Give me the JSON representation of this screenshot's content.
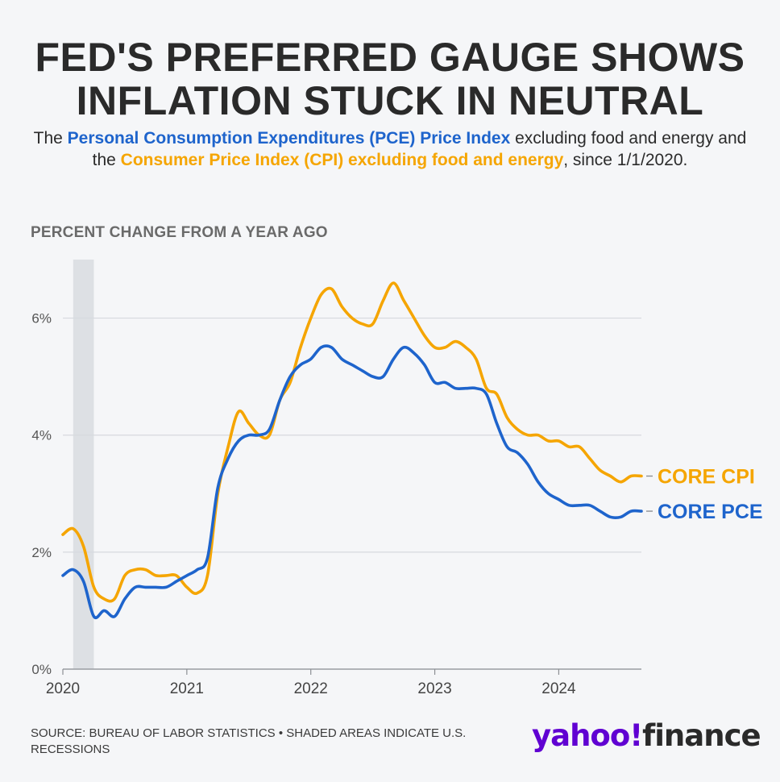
{
  "headline": {
    "line1": "FED'S PREFERRED GAUGE SHOWS",
    "line2": "INFLATION STUCK IN NEUTRAL"
  },
  "subtitle": {
    "part1": "The ",
    "pce_name": "Personal Consumption Expenditures (PCE) Price Index",
    "part2": " excluding food and energy and the ",
    "cpi_name": "Consumer Price Index (CPI) excluding food and energy",
    "part3": ", since 1/1/2020."
  },
  "footer": {
    "source": "SOURCE: BUREAU OF LABOR STATISTICS • SHADED AREAS INDICATE U.S. RECESSIONS",
    "logo_brand": "yahoo!",
    "logo_product": "finance"
  },
  "colors": {
    "cpi": "#f5a500",
    "pce": "#1e64cc",
    "recession": "#dde0e4",
    "grid": "#d6d9de",
    "logo": "#6001d2"
  },
  "chart_data": {
    "type": "line",
    "title": "",
    "ylabel": "PERCENT CHANGE FROM A YEAR AGO",
    "xlabel": "",
    "ylim": [
      0,
      7
    ],
    "xlim": [
      "2020-01",
      "2024-09"
    ],
    "y_ticks": [
      {
        "value": 0,
        "label": "0%"
      },
      {
        "value": 2,
        "label": "2%"
      },
      {
        "value": 4,
        "label": "4%"
      },
      {
        "value": 6,
        "label": "6%"
      }
    ],
    "x_ticks": [
      {
        "value": "2020-01",
        "label": "2020"
      },
      {
        "value": "2021-01",
        "label": "2021"
      },
      {
        "value": "2022-01",
        "label": "2022"
      },
      {
        "value": "2023-01",
        "label": "2023"
      },
      {
        "value": "2024-01",
        "label": "2024"
      }
    ],
    "grid": true,
    "recessions": [
      {
        "start": "2020-02",
        "end": "2020-04"
      }
    ],
    "months": [
      "2020-01",
      "2020-02",
      "2020-03",
      "2020-04",
      "2020-05",
      "2020-06",
      "2020-07",
      "2020-08",
      "2020-09",
      "2020-10",
      "2020-11",
      "2020-12",
      "2021-01",
      "2021-02",
      "2021-03",
      "2021-04",
      "2021-05",
      "2021-06",
      "2021-07",
      "2021-08",
      "2021-09",
      "2021-10",
      "2021-11",
      "2021-12",
      "2022-01",
      "2022-02",
      "2022-03",
      "2022-04",
      "2022-05",
      "2022-06",
      "2022-07",
      "2022-08",
      "2022-09",
      "2022-10",
      "2022-11",
      "2022-12",
      "2023-01",
      "2023-02",
      "2023-03",
      "2023-04",
      "2023-05",
      "2023-06",
      "2023-07",
      "2023-08",
      "2023-09",
      "2023-10",
      "2023-11",
      "2023-12",
      "2024-01",
      "2024-02",
      "2024-03",
      "2024-04",
      "2024-05",
      "2024-06",
      "2024-07",
      "2024-08",
      "2024-09"
    ],
    "series": [
      {
        "name": "CORE CPI",
        "color": "#f5a500",
        "values": [
          2.3,
          2.4,
          2.1,
          1.4,
          1.2,
          1.2,
          1.6,
          1.7,
          1.7,
          1.6,
          1.6,
          1.6,
          1.4,
          1.3,
          1.6,
          3.0,
          3.8,
          4.4,
          4.2,
          4.0,
          4.0,
          4.6,
          4.9,
          5.5,
          6.0,
          6.4,
          6.5,
          6.2,
          6.0,
          5.9,
          5.9,
          6.3,
          6.6,
          6.3,
          6.0,
          5.7,
          5.5,
          5.5,
          5.6,
          5.5,
          5.3,
          4.8,
          4.7,
          4.3,
          4.1,
          4.0,
          4.0,
          3.9,
          3.9,
          3.8,
          3.8,
          3.6,
          3.4,
          3.3,
          3.2,
          3.3,
          3.3
        ],
        "end_label": "CORE CPI"
      },
      {
        "name": "CORE PCE",
        "color": "#1e64cc",
        "values": [
          1.6,
          1.7,
          1.5,
          0.9,
          1.0,
          0.9,
          1.2,
          1.4,
          1.4,
          1.4,
          1.4,
          1.5,
          1.6,
          1.7,
          1.9,
          3.1,
          3.6,
          3.9,
          4.0,
          4.0,
          4.1,
          4.6,
          5.0,
          5.2,
          5.3,
          5.5,
          5.5,
          5.3,
          5.2,
          5.1,
          5.0,
          5.0,
          5.3,
          5.5,
          5.4,
          5.2,
          4.9,
          4.9,
          4.8,
          4.8,
          4.8,
          4.7,
          4.2,
          3.8,
          3.7,
          3.5,
          3.2,
          3.0,
          2.9,
          2.8,
          2.8,
          2.8,
          2.7,
          2.6,
          2.6,
          2.7,
          2.7
        ],
        "end_label": "CORE PCE"
      }
    ]
  }
}
